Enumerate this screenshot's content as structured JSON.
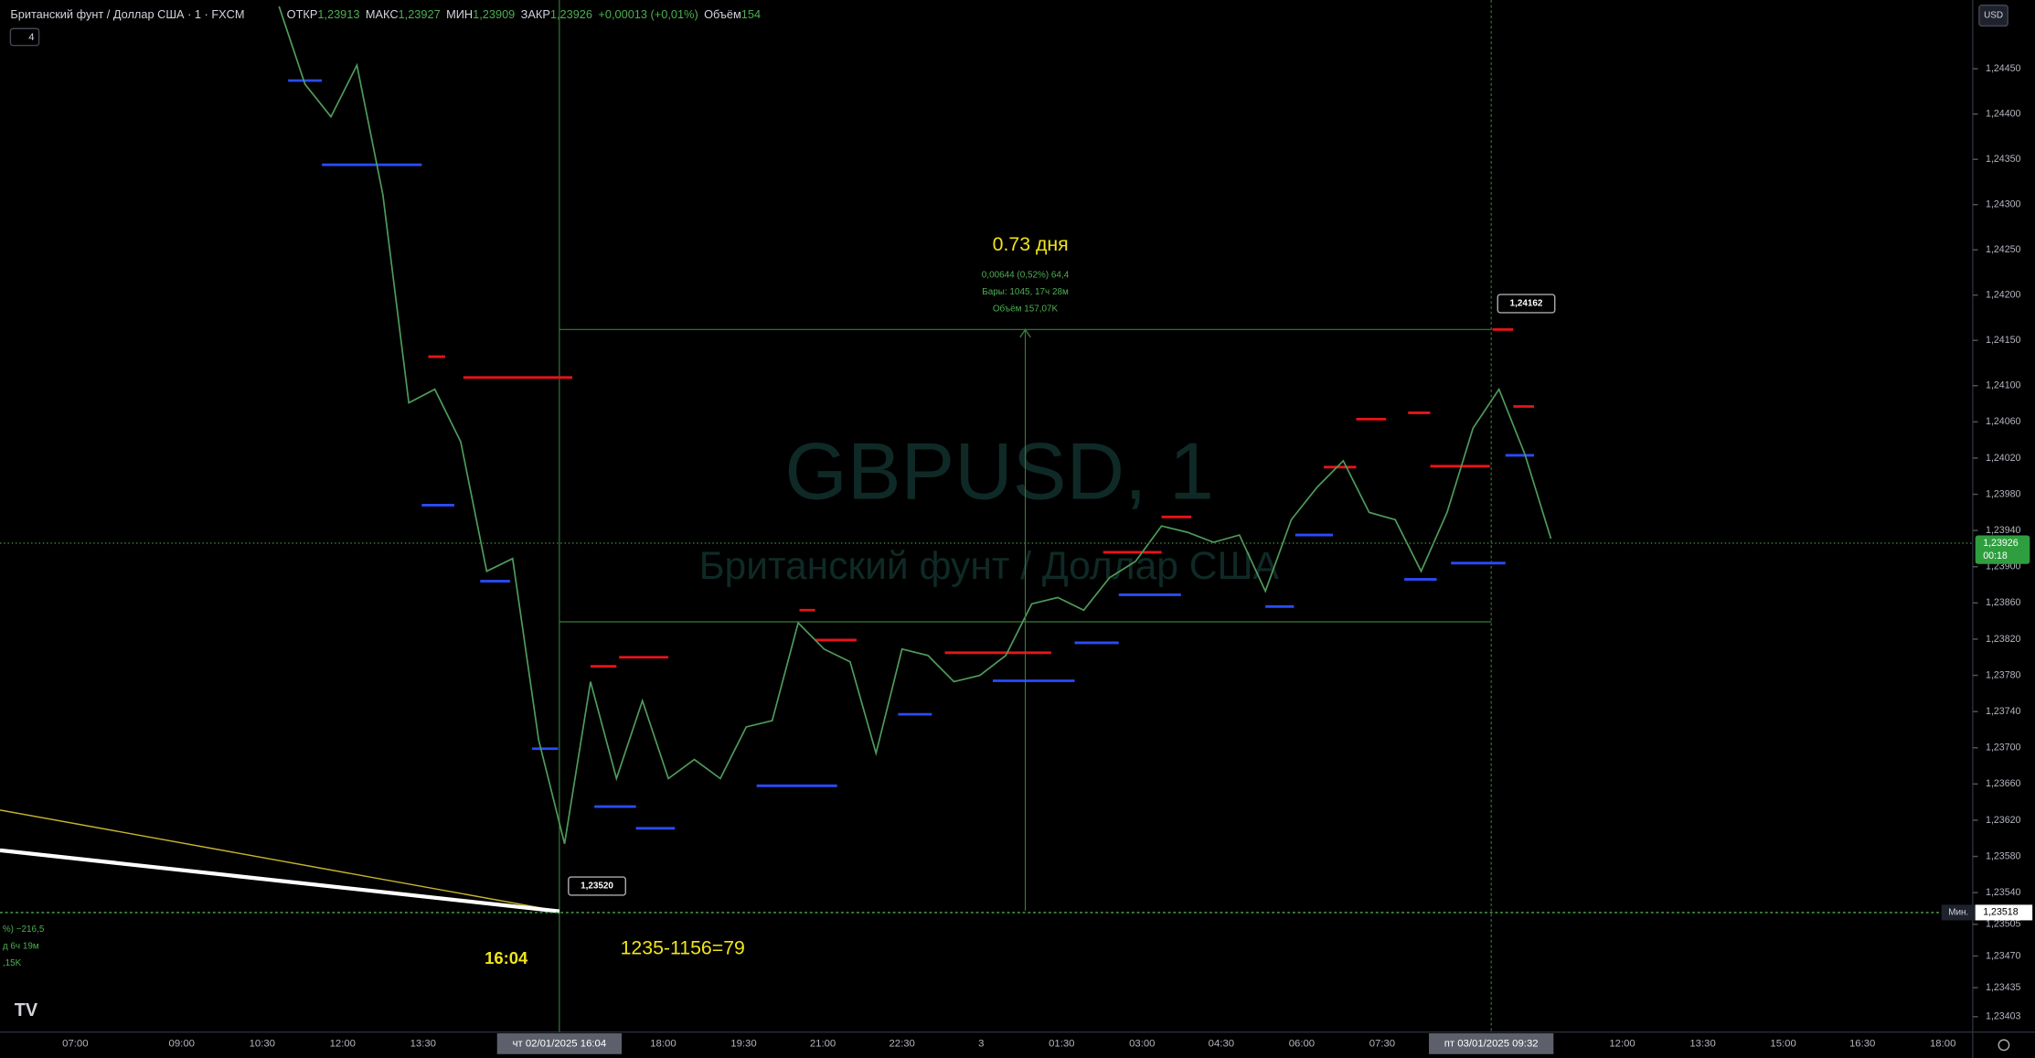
{
  "header": {
    "symbol": "Британский фунт / Доллар США · 1 · FXCM",
    "open_label": "ОТКР",
    "open": "1,23913",
    "high_label": "МАКС",
    "high": "1,23927",
    "low_label": "МИН",
    "low": "1,23909",
    "close_label": "ЗАКР",
    "close": "1,23926",
    "change": "+0,00013 (+0,01%)",
    "volume_label": "Объём",
    "volume": "154",
    "indicators": "4"
  },
  "currency": "USD",
  "watermark": {
    "title": "GBPUSD, 1",
    "subtitle": "Британский фунт / Доллар США"
  },
  "price_axis": {
    "range": [
      1.23386,
      1.24526
    ],
    "ticks": [
      {
        "value": 1.2445,
        "label": "1,24450"
      },
      {
        "value": 1.244,
        "label": "1,24400"
      },
      {
        "value": 1.2435,
        "label": "1,24350"
      },
      {
        "value": 1.243,
        "label": "1,24300"
      },
      {
        "value": 1.2425,
        "label": "1,24250"
      },
      {
        "value": 1.242,
        "label": "1,24200"
      },
      {
        "value": 1.2415,
        "label": "1,24150"
      },
      {
        "value": 1.241,
        "label": "1,24100"
      },
      {
        "value": 1.2406,
        "label": "1,24060"
      },
      {
        "value": 1.2402,
        "label": "1,24020"
      },
      {
        "value": 1.2398,
        "label": "1,23980"
      },
      {
        "value": 1.2394,
        "label": "1,23940"
      },
      {
        "value": 1.239,
        "label": "1,23900"
      },
      {
        "value": 1.2386,
        "label": "1,23860"
      },
      {
        "value": 1.2382,
        "label": "1,23820"
      },
      {
        "value": 1.2378,
        "label": "1,23780"
      },
      {
        "value": 1.2374,
        "label": "1,23740"
      },
      {
        "value": 1.237,
        "label": "1,23700"
      },
      {
        "value": 1.2366,
        "label": "1,23660"
      },
      {
        "value": 1.2362,
        "label": "1,23620"
      },
      {
        "value": 1.2358,
        "label": "1,23580"
      },
      {
        "value": 1.2354,
        "label": "1,23540"
      },
      {
        "value": 1.23505,
        "label": "1,23505"
      },
      {
        "value": 1.2347,
        "label": "1,23470"
      },
      {
        "value": 1.23435,
        "label": "1,23435"
      },
      {
        "value": 1.23403,
        "label": "1,23403"
      }
    ]
  },
  "time_axis": {
    "labels": [
      "07:00",
      "09:00",
      "10:30",
      "12:00",
      "13:30",
      "18:00",
      "19:30",
      "21:00",
      "22:30",
      "3",
      "01:30",
      "03:00",
      "04:30",
      "06:00",
      "07:30",
      "12:00",
      "13:30",
      "15:00",
      "16:30",
      "18:00"
    ],
    "crosshair_start": "чт 02/01/2025  16:04",
    "crosshair_end": "пт 03/01/2025  09:32"
  },
  "price_path": [
    1.24519,
    1.24433,
    1.24397,
    1.24454,
    1.24311,
    1.24081,
    1.24096,
    1.24038,
    1.23895,
    1.23909,
    1.23709,
    1.23594,
    1.23773,
    1.23666,
    1.23752,
    1.23666,
    1.23687,
    1.23666,
    1.23723,
    1.2373,
    1.23838,
    1.23809,
    1.23795,
    1.23694,
    1.23809,
    1.23802,
    1.23773,
    1.2378,
    1.23802,
    1.23859,
    1.23866,
    1.23852,
    1.23888,
    1.23906,
    1.23945,
    1.23938,
    1.23927,
    1.23935,
    1.23873,
    1.23952,
    1.23988,
    1.24017,
    1.2396,
    1.23952,
    1.23895,
    1.2396,
    1.24053,
    1.24096,
    1.24024,
    1.23931
  ],
  "resistance_levels": {
    "color": "#e8141a",
    "prices": [
      1.24132,
      1.24109,
      1.2379,
      1.238,
      1.23852,
      1.23819,
      1.23805,
      1.23916,
      1.23955,
      1.2401,
      1.24063,
      1.2407,
      1.24011,
      1.24162,
      1.24077
    ]
  },
  "support_levels": {
    "color": "#2a4bff",
    "prices": [
      1.24437,
      1.24344,
      1.23968,
      1.23884,
      1.23699,
      1.23635,
      1.23611,
      1.23658,
      1.23737,
      1.23774,
      1.23816,
      1.23869,
      1.23856,
      1.23935,
      1.23886,
      1.23904,
      1.24023
    ]
  },
  "measurement": {
    "duration": "0.73 дня",
    "change": "0,00644 (0,52%) 64,4",
    "bars": "Бары: 1045, 17ч 28м",
    "volume": "Объём 157,07K",
    "high": 1.24162,
    "high_label": "1,24162",
    "low": 1.2352,
    "low_label": "1,23520"
  },
  "current_price": {
    "value": 1.23926,
    "label": "1,23926",
    "countdown": "00:18"
  },
  "min_line": {
    "value": 1.23518,
    "label": "1,23518",
    "tag": "Мин."
  },
  "annotations": {
    "time": "16:04",
    "calc": "1235-1156=79",
    "left_stats": [
      "%) −216,5",
      "д 6ч 19м",
      ",15K"
    ]
  }
}
